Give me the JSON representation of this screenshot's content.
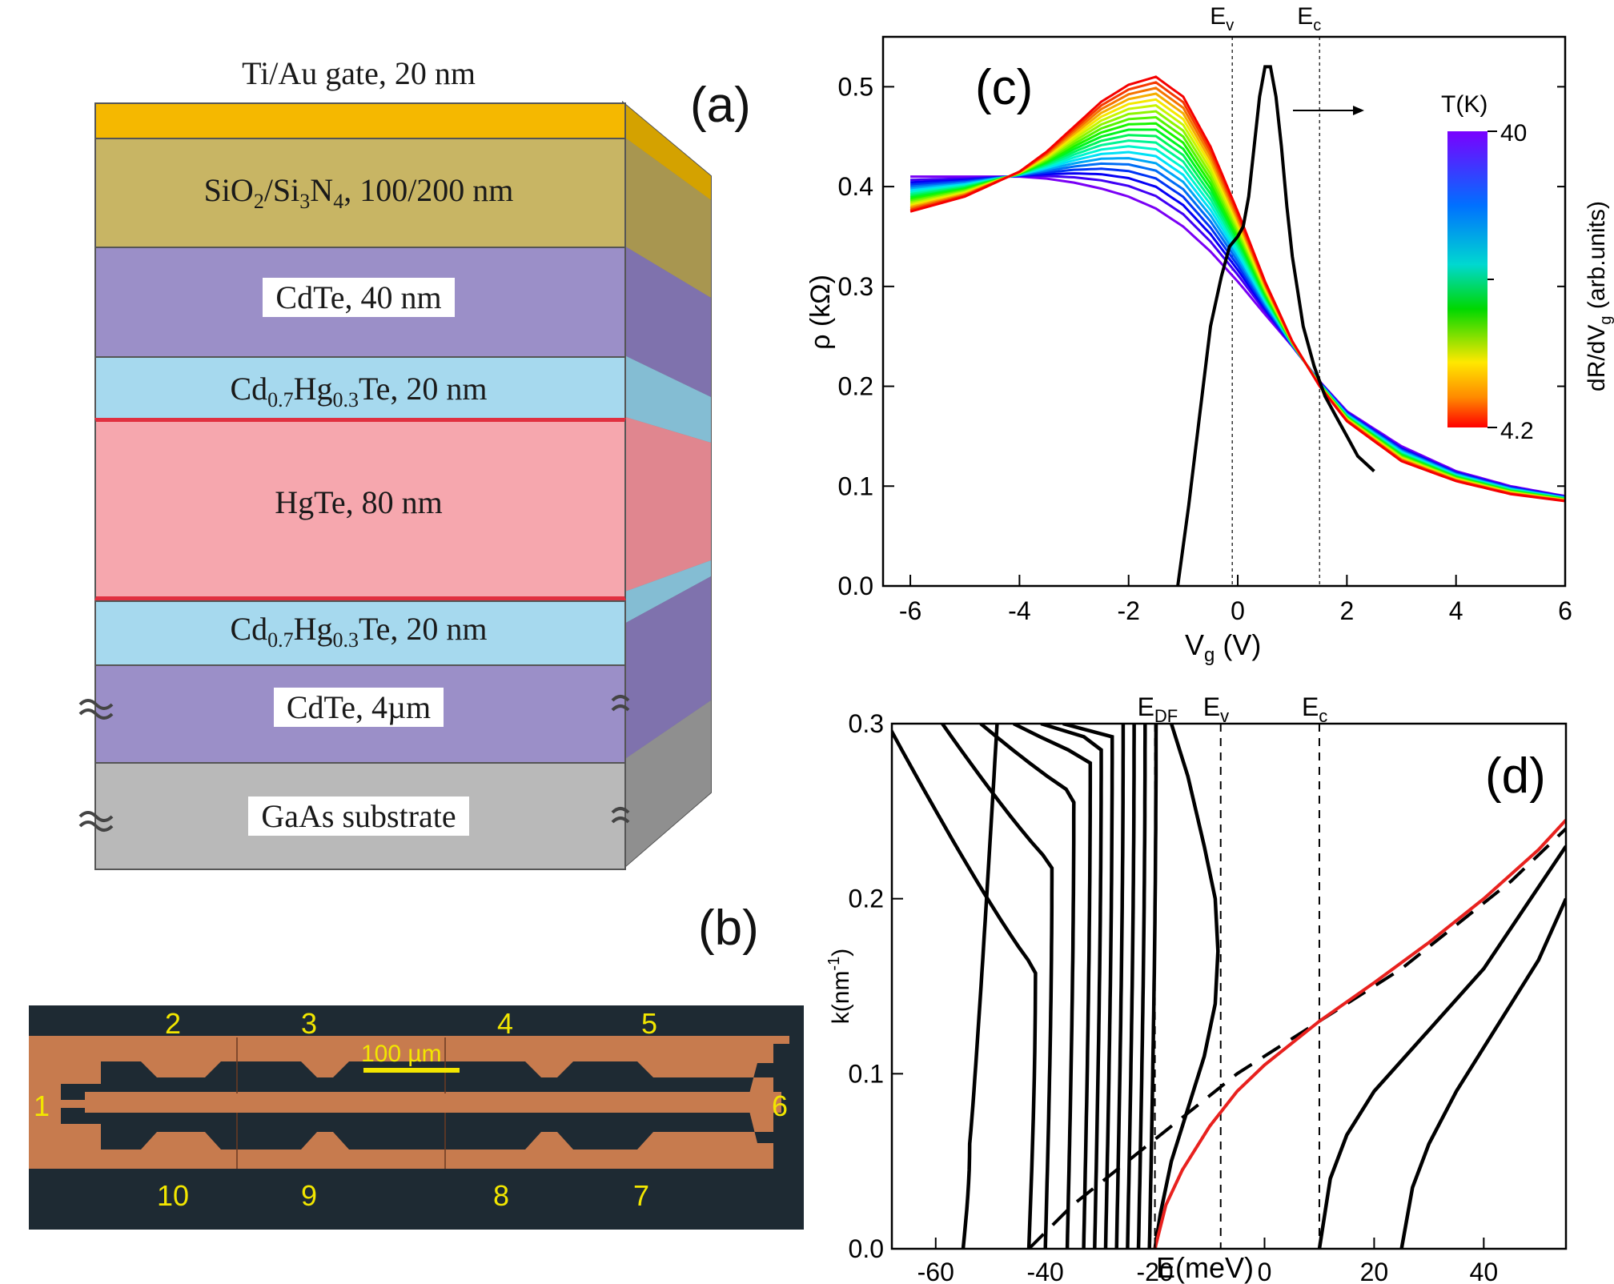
{
  "panel_a": {
    "label": "(a)",
    "layers": [
      {
        "name": "Ti/Au gate, 20 nm",
        "color": "#f5b800"
      },
      {
        "name": "SiO2/Si3N4, 100/200 nm",
        "color": "#c8b564"
      },
      {
        "name": "CdTe, 40 nm",
        "color": "#9b8fc8"
      },
      {
        "name": "Cd0.7Hg0.3Te, 20 nm",
        "color": "#a6d9ee"
      },
      {
        "name": "HgTe, 80 nm",
        "color": "#f6a7ae"
      },
      {
        "name": "Cd0.7Hg0.3Te, 20 nm",
        "color": "#a6d9ee"
      },
      {
        "name": "CdTe, 4µm",
        "color": "#9b8fc8"
      },
      {
        "name": "GaAs substrate",
        "color": "#b9b9b9"
      }
    ],
    "text": {
      "gate": "Ti/Au gate, 20 nm",
      "sio": "SiO",
      "sio_sub": "2",
      "si": "/Si",
      "si_sub": "3",
      "n": "N",
      "n_sub": "4",
      "sio_rest": ", 100/200 nm",
      "cdte40": "CdTe, 40 nm",
      "cdhg_a": "Cd",
      "cdhg_sub1": "0.7",
      "cdhg_b": "Hg",
      "cdhg_sub2": "0.3",
      "cdhg_c": "Te, 20 nm",
      "hgte": "HgTe, 80 nm",
      "cdte4": "CdTe, 4µm",
      "gaas": "GaAs substrate"
    }
  },
  "panel_b": {
    "label": "(b)",
    "contacts_top": [
      "2",
      "3",
      "4",
      "5"
    ],
    "contacts_bottom": [
      "10",
      "9",
      "8",
      "7"
    ],
    "contact_left": "1",
    "contact_right": "6",
    "scale_bar": "100 µm",
    "colors": {
      "background": "#1e2a33",
      "bar": "#c77b4e",
      "labels": "#f2e600"
    }
  },
  "chart_data": [
    {
      "id": "c",
      "type": "line",
      "label": "(c)",
      "xlabel": "V",
      "xlabel_sub": "g",
      "xlabel_unit": " (V)",
      "ylabel": "ρ (kΩ)",
      "ylabel_right": "dR/dV",
      "ylabel_right_sub": "g",
      "ylabel_right_unit": " (arb.units)",
      "xlim": [
        -6.5,
        6
      ],
      "ylim": [
        0,
        0.55
      ],
      "xticks": [
        -6,
        -4,
        -2,
        0,
        2,
        4,
        6
      ],
      "yticks": [
        0.0,
        0.1,
        0.2,
        0.3,
        0.4,
        0.5
      ],
      "ytick_labels": [
        "0.0",
        "0.1",
        "0.2",
        "0.3",
        "0.4",
        "0.5"
      ],
      "vlines": [
        {
          "x": -0.1,
          "label": "E",
          "sub": "v"
        },
        {
          "x": 1.5,
          "label": "E",
          "sub": "c"
        }
      ],
      "colorbar": {
        "title": "T(K)",
        "max": "40",
        "min": "4.2"
      },
      "temperature_series": {
        "T_high": 40,
        "T_low": 4.2,
        "count": 20,
        "high": {
          "x": [
            -6,
            -5,
            -4,
            -3.5,
            -3,
            -2.5,
            -2,
            -1.5,
            -1,
            -0.5,
            0,
            0.5,
            1,
            1.5,
            2,
            3,
            4,
            5,
            6
          ],
          "y": [
            0.41,
            0.41,
            0.41,
            0.408,
            0.404,
            0.398,
            0.39,
            0.378,
            0.36,
            0.335,
            0.305,
            0.272,
            0.24,
            0.205,
            0.175,
            0.14,
            0.115,
            0.1,
            0.09
          ]
        },
        "low": {
          "x": [
            -6,
            -5,
            -4,
            -3.5,
            -3,
            -2.5,
            -2,
            -1.5,
            -1,
            -0.5,
            0,
            0.5,
            1,
            1.5,
            2,
            3,
            4,
            5,
            6
          ],
          "y": [
            0.375,
            0.39,
            0.415,
            0.435,
            0.46,
            0.485,
            0.502,
            0.51,
            0.49,
            0.44,
            0.375,
            0.305,
            0.245,
            0.2,
            0.165,
            0.125,
            0.105,
            0.092,
            0.085
          ]
        }
      },
      "derivative_series": {
        "color": "#000000",
        "x": [
          -1.1,
          -0.9,
          -0.7,
          -0.5,
          -0.3,
          -0.15,
          0.0,
          0.1,
          0.2,
          0.3,
          0.4,
          0.5,
          0.6,
          0.7,
          0.8,
          0.9,
          1.0,
          1.2,
          1.4,
          1.6,
          1.8,
          2.0,
          2.2,
          2.5
        ],
        "y": [
          0.0,
          0.08,
          0.17,
          0.26,
          0.31,
          0.34,
          0.35,
          0.36,
          0.39,
          0.44,
          0.49,
          0.52,
          0.52,
          0.49,
          0.44,
          0.38,
          0.33,
          0.26,
          0.22,
          0.19,
          0.17,
          0.15,
          0.13,
          0.115
        ]
      }
    },
    {
      "id": "d",
      "type": "line",
      "label": "(d)",
      "xlabel": "E(meV)",
      "ylabel": "k(nm",
      "ylabel_sup": "-1",
      "ylabel_end": ")",
      "xlim": [
        -68,
        55
      ],
      "ylim": [
        0,
        0.3
      ],
      "xticks": [
        -60,
        -40,
        -20,
        0,
        20,
        40
      ],
      "yticks": [
        0.0,
        0.1,
        0.2,
        0.3
      ],
      "ytick_labels": [
        "0.0",
        "0.1",
        "0.2",
        "0.3"
      ],
      "vlines": [
        {
          "x": -20,
          "label": "E",
          "sub": "DF"
        },
        {
          "x": -8,
          "label": "E",
          "sub": "v"
        },
        {
          "x": 10,
          "label": "E",
          "sub": "c"
        }
      ],
      "valence_bands": [
        {
          "start": -55,
          "top": -50,
          "kt": 0.06
        },
        {
          "start": -43,
          "top": -70,
          "kt": 0.16
        },
        {
          "start": -40,
          "top": -60,
          "kt": 0.22
        },
        {
          "start": -36,
          "top": -53,
          "kt": 0.26
        },
        {
          "start": -33,
          "top": -47,
          "kt": 0.28
        },
        {
          "start": -31,
          "top": -42,
          "kt": 0.29
        },
        {
          "start": -29,
          "top": -38,
          "kt": 0.295
        },
        {
          "start": -27,
          "top": -34,
          "kt": 0.3
        },
        {
          "start": -25,
          "top": -30,
          "kt": 0.3
        },
        {
          "start": -23,
          "top": -26,
          "kt": 0.3
        },
        {
          "start": -21,
          "top": -22,
          "kt": 0.3
        }
      ],
      "edge_band": {
        "x": [
          -20,
          -19,
          -17,
          -14,
          -11,
          -9,
          -8.5,
          -9,
          -11,
          -14,
          -17
        ],
        "y": [
          0.0,
          0.02,
          0.05,
          0.08,
          0.11,
          0.14,
          0.17,
          0.2,
          0.23,
          0.27,
          0.3
        ]
      },
      "dirac_dashed": {
        "x": [
          -43,
          -35,
          -25,
          -15,
          -5,
          5,
          15,
          25,
          35,
          45,
          55
        ],
        "y": [
          0.0,
          0.025,
          0.05,
          0.075,
          0.1,
          0.12,
          0.14,
          0.16,
          0.185,
          0.21,
          0.24
        ]
      },
      "dirac_red": {
        "color": "#e8211e",
        "x": [
          -20,
          -18,
          -15,
          -10,
          -5,
          0,
          10,
          20,
          30,
          40,
          50,
          55
        ],
        "y": [
          0.0,
          0.025,
          0.045,
          0.07,
          0.09,
          0.105,
          0.13,
          0.152,
          0.175,
          0.2,
          0.228,
          0.245
        ]
      },
      "conduction_bands": [
        {
          "x": [
            10,
            12,
            15,
            20,
            30,
            40,
            55
          ],
          "y": [
            0.0,
            0.04,
            0.065,
            0.09,
            0.125,
            0.16,
            0.23
          ]
        },
        {
          "x": [
            25,
            27,
            30,
            35,
            42,
            50,
            55
          ],
          "y": [
            0.0,
            0.035,
            0.06,
            0.09,
            0.125,
            0.165,
            0.2
          ]
        }
      ]
    }
  ]
}
